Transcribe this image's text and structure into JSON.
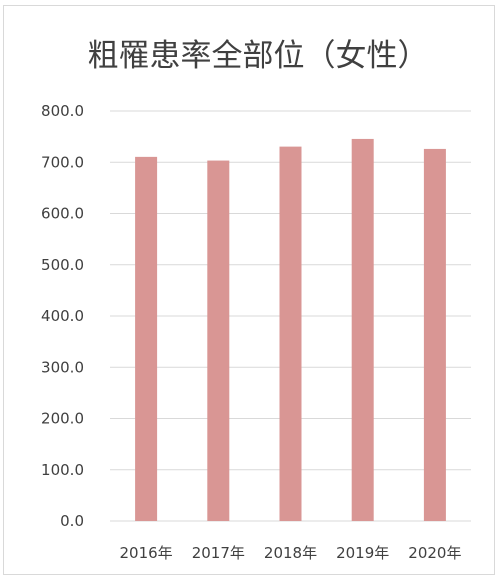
{
  "chart_data": {
    "type": "bar",
    "title": "粗罹患率全部位（女性）",
    "categories": [
      "2016年",
      "2017年",
      "2018年",
      "2019年",
      "2020年"
    ],
    "series": [
      {
        "values": [
          710.5,
          703.3,
          730.5,
          745.5,
          726.0
        ],
        "color": "#d99694"
      }
    ],
    "ylim": [
      0,
      800
    ],
    "yticks": [
      "0.0",
      "100.0",
      "200.0",
      "300.0",
      "400.0",
      "500.0",
      "600.0",
      "700.0",
      "800.0"
    ],
    "grid": true,
    "legend": "none"
  }
}
